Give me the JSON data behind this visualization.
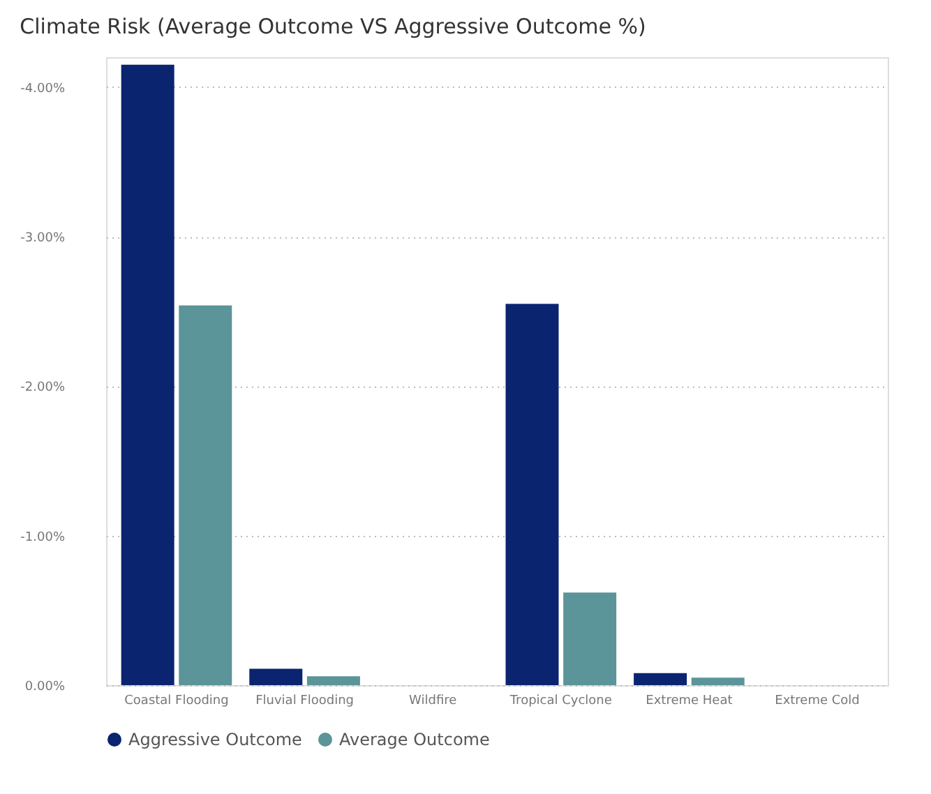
{
  "chart_data": {
    "type": "bar",
    "title": "Climate Risk (Average Outcome VS Aggressive Outcome %)",
    "categories": [
      "Coastal Flooding",
      "Fluvial Flooding",
      "Wildfire",
      "Tropical Cyclone",
      "Extreme Heat",
      "Extreme Cold"
    ],
    "series": [
      {
        "name": "Aggressive Outcome",
        "color": "#0a2470",
        "values": [
          -4.15,
          -0.11,
          0,
          -2.55,
          -0.08,
          0
        ]
      },
      {
        "name": "Average Outcome",
        "color": "#5b9499",
        "values": [
          -2.54,
          -0.06,
          0,
          -0.62,
          -0.05,
          0
        ]
      }
    ],
    "ylim": [
      0,
      -4.2
    ],
    "yticks": [
      {
        "value": 0,
        "label": "0.00%"
      },
      {
        "value": -1,
        "label": "-1.00%"
      },
      {
        "value": -2,
        "label": "-2.00%"
      },
      {
        "value": -3,
        "label": "-3.00%"
      },
      {
        "value": -4,
        "label": "-4.00%"
      }
    ],
    "grid": "y",
    "legend": "bottom"
  }
}
